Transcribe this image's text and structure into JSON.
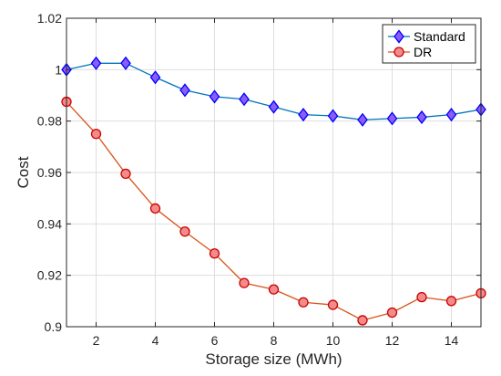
{
  "chart_data": {
    "type": "line",
    "title": "",
    "xlabel": "Storage size (MWh)",
    "ylabel": "Cost",
    "x": [
      1,
      2,
      3,
      4,
      5,
      6,
      7,
      8,
      9,
      10,
      11,
      12,
      13,
      14,
      15
    ],
    "xlim": [
      1,
      15
    ],
    "ylim": [
      0.9,
      1.02
    ],
    "xticks": [
      2,
      4,
      6,
      8,
      10,
      12,
      14
    ],
    "xtick_labels": [
      "2",
      "4",
      "6",
      "8",
      "10",
      "12",
      "14"
    ],
    "yticks": [
      0.9,
      0.92,
      0.94,
      0.96,
      0.98,
      1.0,
      1.02
    ],
    "ytick_labels": [
      "0.9",
      "0.92",
      "0.94",
      "0.96",
      "0.98",
      "1",
      "1.02"
    ],
    "grid": true,
    "legend_position": "top-right",
    "series": [
      {
        "name": "Standard",
        "marker": "diamond",
        "line_color": "#0072BD",
        "marker_edge": "#0000FF",
        "marker_fill": "#8B5CF6",
        "values": [
          1.0,
          1.0025,
          1.0025,
          0.997,
          0.992,
          0.9895,
          0.9885,
          0.9855,
          0.9825,
          0.982,
          0.9805,
          0.981,
          0.9815,
          0.9825,
          0.9845
        ]
      },
      {
        "name": "DR",
        "marker": "circle",
        "line_color": "#D95319",
        "marker_edge": "#CC0000",
        "marker_fill": "#F28B8B",
        "values": [
          0.9875,
          0.975,
          0.9595,
          0.946,
          0.937,
          0.9285,
          0.917,
          0.9145,
          0.9095,
          0.9085,
          0.9025,
          0.9055,
          0.9115,
          0.91,
          0.913
        ]
      }
    ]
  }
}
